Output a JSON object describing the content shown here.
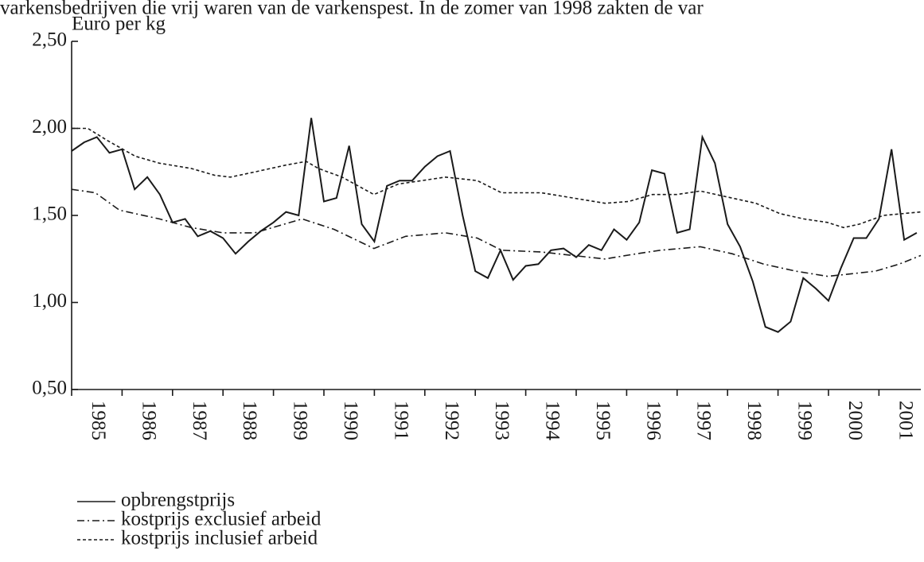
{
  "chart_data": {
    "type": "line",
    "header_text": "varkensbedrijven die vrij waren van de varkenspest. In de zomer van 1998 zakten de var",
    "y_label": "Euro per kg",
    "xlim": [
      1985,
      2001.83
    ],
    "xticks": [
      1985,
      1986,
      1987,
      1988,
      1989,
      1990,
      1991,
      1992,
      1993,
      1994,
      1995,
      1996,
      1997,
      1998,
      1999,
      2000,
      2001
    ],
    "ylim": [
      0.5,
      2.5
    ],
    "yticks": [
      {
        "value": 0.5,
        "label": "0,50"
      },
      {
        "value": 1.0,
        "label": "1,00"
      },
      {
        "value": 1.5,
        "label": "1,50"
      },
      {
        "value": 2.0,
        "label": "2,00"
      },
      {
        "value": 2.5,
        "label": "2,50"
      }
    ],
    "series": [
      {
        "name": "opbrengstprijs",
        "color": "#1a1a1a",
        "dash": "solid",
        "x": [
          1985,
          1985.25,
          1985.5,
          1985.75,
          1986,
          1986.25,
          1986.5,
          1986.75,
          1987,
          1987.25,
          1987.5,
          1987.75,
          1988,
          1988.25,
          1988.5,
          1988.75,
          1989,
          1989.25,
          1989.5,
          1989.75,
          1990,
          1990.25,
          1990.5,
          1990.75,
          1991,
          1991.25,
          1991.5,
          1991.75,
          1992,
          1992.25,
          1992.5,
          1992.75,
          1993,
          1993.25,
          1993.5,
          1993.75,
          1994,
          1994.25,
          1994.5,
          1994.75,
          1995,
          1995.25,
          1995.5,
          1995.75,
          1996,
          1996.25,
          1996.5,
          1996.75,
          1997,
          1997.25,
          1997.5,
          1997.75,
          1998,
          1998.25,
          1998.5,
          1998.75,
          1999,
          1999.25,
          1999.5,
          1999.75,
          2000,
          2000.25,
          2000.5,
          2000.75,
          2001,
          2001.25,
          2001.5,
          2001.75
        ],
        "values": [
          1.87,
          1.92,
          1.95,
          1.86,
          1.88,
          1.65,
          1.72,
          1.62,
          1.46,
          1.48,
          1.38,
          1.41,
          1.37,
          1.28,
          1.35,
          1.41,
          1.46,
          1.52,
          1.5,
          2.06,
          1.58,
          1.6,
          1.9,
          1.45,
          1.35,
          1.67,
          1.7,
          1.7,
          1.78,
          1.84,
          1.87,
          1.5,
          1.18,
          1.14,
          1.3,
          1.13,
          1.21,
          1.22,
          1.3,
          1.31,
          1.26,
          1.33,
          1.3,
          1.42,
          1.36,
          1.46,
          1.76,
          1.74,
          1.4,
          1.42,
          1.95,
          1.8,
          1.45,
          1.32,
          1.12,
          0.86,
          0.83,
          0.89,
          1.14,
          1.08,
          1.01,
          1.2,
          1.37,
          1.37,
          1.48,
          1.88,
          1.36,
          1.4
        ]
      },
      {
        "name": "kostprijs exclusief arbeid",
        "color": "#1a1a1a",
        "dash": "dashdot",
        "x": [
          1985,
          1985.47,
          1985.95,
          1986.74,
          1987.37,
          1988,
          1988.63,
          1989.1,
          1989.57,
          1990.2,
          1990.99,
          1991.62,
          1992.41,
          1993.04,
          1993.52,
          1994.31,
          1994.94,
          1995.57,
          1996.2,
          1996.67,
          1997.46,
          1998.09,
          1998.72,
          1999.35,
          1999.98,
          2000.3,
          2000.93,
          2001.4,
          2001.83
        ],
        "values": [
          1.65,
          1.63,
          1.53,
          1.48,
          1.43,
          1.4,
          1.4,
          1.44,
          1.48,
          1.42,
          1.31,
          1.38,
          1.4,
          1.37,
          1.3,
          1.29,
          1.27,
          1.25,
          1.28,
          1.3,
          1.32,
          1.28,
          1.22,
          1.18,
          1.15,
          1.16,
          1.18,
          1.22,
          1.27
        ]
      },
      {
        "name": "kostprijs inclusief arbeid",
        "color": "#1a1a1a",
        "dash": "dotted",
        "x": [
          1985,
          1985.32,
          1985.71,
          1986.26,
          1986.74,
          1987.37,
          1987.84,
          1988.15,
          1988.63,
          1989.26,
          1989.65,
          1989.89,
          1990.36,
          1990.99,
          1991.47,
          1991.94,
          1992.41,
          1993.04,
          1993.52,
          1994.31,
          1994.94,
          1995.57,
          1996.04,
          1996.51,
          1996.99,
          1997.46,
          1997.93,
          1998.56,
          1999.04,
          1999.51,
          1999.98,
          2000.3,
          2000.61,
          2001.09,
          2001.83
        ],
        "values": [
          2.0,
          2.0,
          1.93,
          1.84,
          1.8,
          1.77,
          1.73,
          1.72,
          1.75,
          1.79,
          1.81,
          1.77,
          1.72,
          1.62,
          1.68,
          1.7,
          1.72,
          1.7,
          1.63,
          1.63,
          1.6,
          1.57,
          1.58,
          1.62,
          1.62,
          1.64,
          1.61,
          1.57,
          1.51,
          1.48,
          1.46,
          1.43,
          1.45,
          1.5,
          1.52
        ]
      }
    ]
  }
}
